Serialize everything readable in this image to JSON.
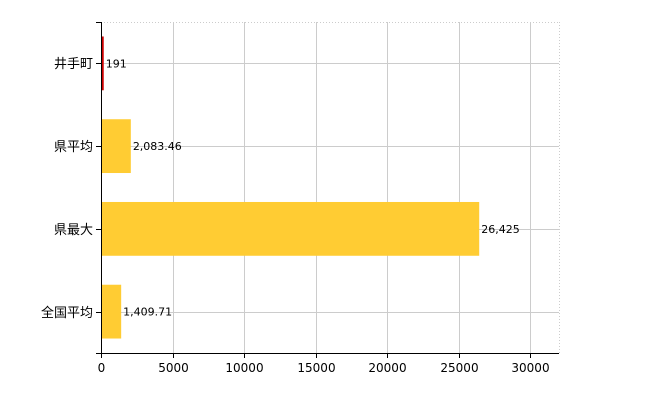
{
  "chart_data": {
    "type": "bar",
    "orientation": "horizontal",
    "categories": [
      "井手町",
      "県平均",
      "県最大",
      "全国平均"
    ],
    "values": [
      191,
      2083.46,
      26425,
      1409.71
    ],
    "value_labels": [
      "191",
      "2,083.46",
      "26,425",
      "1,409.71"
    ],
    "bar_colors": [
      "#cc0000",
      "#ffcc33",
      "#ffcc33",
      "#ffcc33"
    ],
    "xlim": [
      0,
      32000
    ],
    "xticks": [
      0,
      5000,
      10000,
      15000,
      20000,
      25000,
      30000
    ],
    "xtick_labels": [
      "0",
      "5000",
      "10000",
      "15000",
      "20000",
      "25000",
      "30000"
    ],
    "grid": true,
    "grid_color": "#cccccc",
    "title": "",
    "xlabel": "",
    "ylabel": ""
  }
}
